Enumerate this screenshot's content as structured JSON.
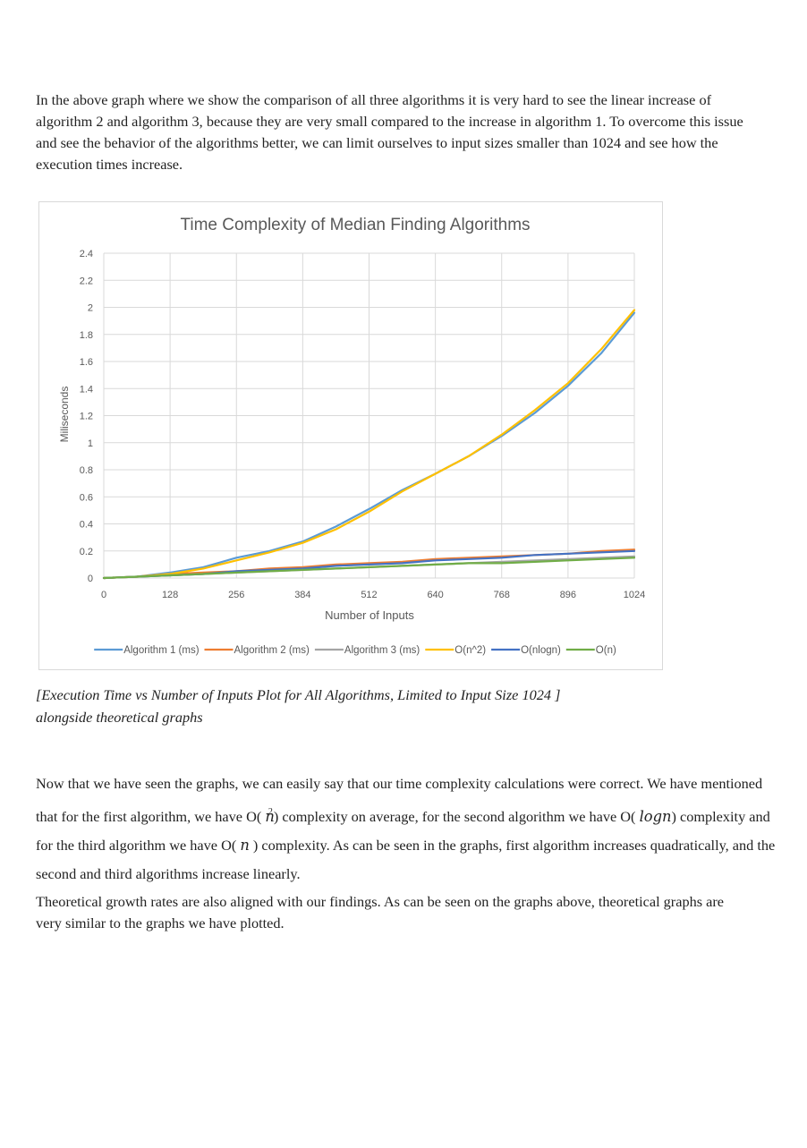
{
  "paragraphs": {
    "intro": "In the above graph where we show the comparison of all three algorithms it is very hard to see the linear increase of algorithm 2 and algorithm 3, because they are very small compared to the increase in algorithm 1. To overcome this issue and see the behavior of the algorithms better, we can limit ourselves to input sizes smaller than 1024 and see how the execution times increase.",
    "conclusion": {
      "part1": "Now that we have seen the graphs, we can easily say that our time complexity calculations were correct. We have mentioned that for the first algorithm, we have O(",
      "math1": "n",
      "math1_exp": "2",
      "part2": ") complexity on average, for the second algorithm we have O(",
      "math2": "logn",
      "part3": ") complexity and for the third algorithm we have O(",
      "math3": "n",
      "part4": ") complexity. As can be seen in the graphs, first algorithm increases quadratically, and the second and third algorithms increase linearly."
    },
    "theoretical": "Theoretical growth rates are also aligned with our findings. As can be seen on the graphs above, theoretical graphs are very similar to the graphs we have plotted."
  },
  "caption": {
    "line1": "[Execution Time vs Number of Inputs Plot for All Algorithms, Limited to Input Size 1024 ]",
    "line2": "alongside theoretical graphs"
  },
  "chart_data": {
    "type": "line",
    "title": "Time Complexity of Median Finding Algorithms",
    "xlabel": "Number of Inputs",
    "ylabel": "Miliseconds",
    "xlim": [
      0,
      1024
    ],
    "ylim": [
      0,
      2.4
    ],
    "xticks": [
      0,
      128,
      256,
      384,
      512,
      640,
      768,
      896,
      1024
    ],
    "yticks": [
      "0",
      "0.2",
      "0.4",
      "0.6",
      "0.8",
      "1",
      "1.2",
      "1.4",
      "1.6",
      "1.8",
      "2",
      "2.2",
      "2.4"
    ],
    "grid": true,
    "legend_position": "bottom",
    "x": [
      0,
      64,
      128,
      192,
      256,
      320,
      384,
      448,
      512,
      576,
      640,
      704,
      768,
      832,
      896,
      960,
      1024
    ],
    "series": [
      {
        "name": "Algorithm 1 (ms)",
        "color": "#5b9bd5",
        "values": [
          0.0,
          0.01,
          0.04,
          0.08,
          0.15,
          0.2,
          0.27,
          0.38,
          0.51,
          0.65,
          0.77,
          0.9,
          1.05,
          1.22,
          1.42,
          1.66,
          1.96
        ]
      },
      {
        "name": "Algorithm 2 (ms)",
        "color": "#ed7d31",
        "values": [
          0.0,
          0.01,
          0.03,
          0.04,
          0.05,
          0.07,
          0.08,
          0.1,
          0.11,
          0.12,
          0.14,
          0.15,
          0.16,
          0.17,
          0.18,
          0.2,
          0.21
        ]
      },
      {
        "name": "Algorithm 3 (ms)",
        "color": "#a5a5a5",
        "values": [
          0.0,
          0.01,
          0.02,
          0.03,
          0.04,
          0.05,
          0.06,
          0.07,
          0.08,
          0.09,
          0.1,
          0.11,
          0.12,
          0.13,
          0.14,
          0.15,
          0.16
        ]
      },
      {
        "name": "O(n^2)",
        "color": "#ffc000",
        "values": [
          0.0,
          0.01,
          0.03,
          0.07,
          0.13,
          0.19,
          0.26,
          0.36,
          0.49,
          0.64,
          0.77,
          0.9,
          1.06,
          1.24,
          1.44,
          1.69,
          1.98
        ]
      },
      {
        "name": "O(nlogn)",
        "color": "#4472c4",
        "values": [
          0.0,
          0.01,
          0.02,
          0.03,
          0.05,
          0.06,
          0.07,
          0.09,
          0.1,
          0.11,
          0.13,
          0.14,
          0.15,
          0.17,
          0.18,
          0.19,
          0.2
        ]
      },
      {
        "name": "O(n)",
        "color": "#70ad47",
        "values": [
          0.0,
          0.01,
          0.02,
          0.03,
          0.04,
          0.05,
          0.06,
          0.07,
          0.08,
          0.09,
          0.1,
          0.11,
          0.11,
          0.12,
          0.13,
          0.14,
          0.15
        ]
      }
    ]
  }
}
